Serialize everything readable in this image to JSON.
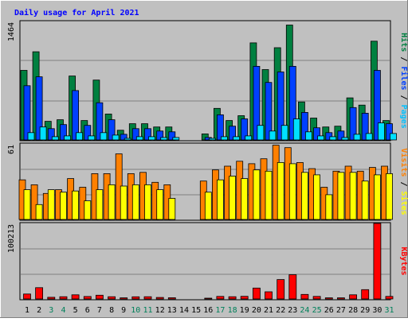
{
  "chart_data": {
    "type": "bar",
    "title": "Daily usage for April 2021",
    "categories": [
      "1",
      "2",
      "3",
      "4",
      "5",
      "6",
      "7",
      "8",
      "9",
      "10",
      "11",
      "12",
      "13",
      "14",
      "15",
      "16",
      "17",
      "18",
      "19",
      "20",
      "21",
      "22",
      "23",
      "24",
      "25",
      "26",
      "27",
      "28",
      "29",
      "30",
      "31"
    ],
    "weekend_days": [
      "3",
      "4",
      "10",
      "11",
      "17",
      "18",
      "24",
      "25",
      "31"
    ],
    "panels": [
      {
        "id": "hits",
        "ymax_label": "1464",
        "ylim": [
          0,
          1464
        ],
        "legend": [
          "Pages",
          "Files",
          "Hits"
        ],
        "series": [
          {
            "name": "Hits",
            "color": "#008040",
            "values": [
              860,
              1090,
              230,
              250,
              790,
              240,
              740,
              320,
              120,
              200,
              200,
              160,
              160,
              0,
              0,
              75,
              390,
              240,
              300,
              1200,
              870,
              1140,
              1420,
              470,
              270,
              160,
              170,
              520,
              430,
              1220,
              240
            ]
          },
          {
            "name": "Files",
            "color": "#0040ff",
            "values": [
              670,
              780,
              140,
              190,
              610,
              180,
              460,
              250,
              70,
              140,
              140,
              110,
              100,
              0,
              0,
              30,
              310,
              170,
              260,
              910,
              710,
              840,
              910,
              340,
              150,
              90,
              110,
              400,
              330,
              860,
              200
            ]
          },
          {
            "name": "Pages",
            "color": "#00e0ff",
            "values": [
              90,
              160,
              40,
              50,
              90,
              50,
              90,
              60,
              20,
              40,
              40,
              30,
              30,
              0,
              0,
              20,
              40,
              40,
              50,
              180,
              110,
              180,
              260,
              100,
              50,
              40,
              30,
              70,
              80,
              210,
              80
            ]
          }
        ]
      },
      {
        "id": "visits",
        "ymax_label": "61",
        "ylim": [
          0,
          61
        ],
        "legend": [
          "Sites",
          "Visits"
        ],
        "series": [
          {
            "name": "Visits",
            "color": "#ff8000",
            "values": [
              32,
              28,
              21,
              24,
              33,
              26,
              37,
              37,
              53,
              37,
              38,
              30,
              28,
              0,
              0,
              31,
              40,
              43,
              47,
              45,
              49,
              60,
              58,
              46,
              41,
              26,
              39,
              43,
              39,
              42,
              43
            ]
          },
          {
            "name": "Sites",
            "color": "#ffff00",
            "values": [
              24,
              12,
              24,
              22,
              23,
              15,
              24,
              28,
              27,
              28,
              28,
              24,
              17,
              0,
              0,
              22,
              32,
              35,
              33,
              40,
              39,
              46,
              45,
              38,
              36,
              20,
              38,
              38,
              31,
              36,
              37
            ]
          }
        ]
      },
      {
        "id": "kbytes",
        "ymax_label": "100213",
        "ylim": [
          0,
          100213
        ],
        "legend": [
          "KBytes"
        ],
        "series": [
          {
            "name": "KBytes",
            "color": "#ff0000",
            "values": [
              6500,
              15000,
              2200,
              3000,
              5500,
              3300,
              5000,
              3000,
              1500,
              2800,
              3000,
              2000,
              1600,
              0,
              0,
              700,
              3400,
              3000,
              3500,
              14500,
              9500,
              25700,
              32200,
              6000,
              3400,
              1500,
              1500,
              5500,
              12300,
              100213,
              3400
            ]
          }
        ]
      }
    ]
  }
}
